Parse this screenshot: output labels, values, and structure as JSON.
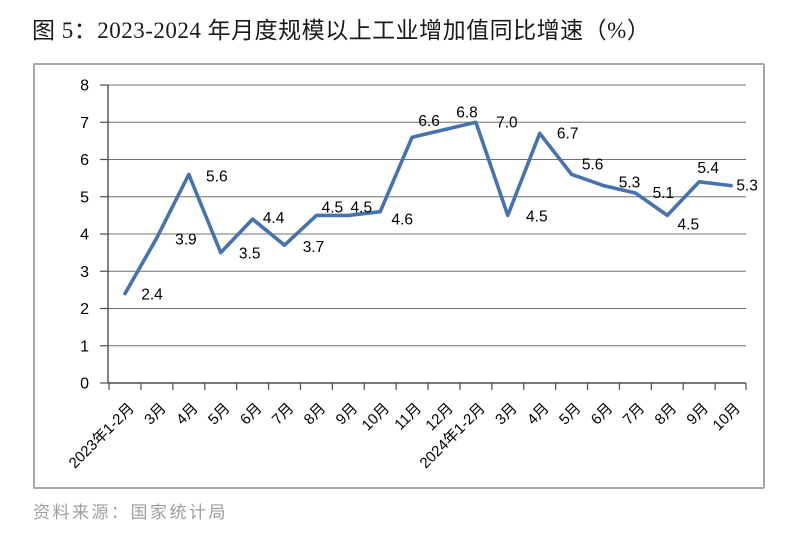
{
  "title": "图 5：2023-2024 年月度规模以上工业增加值同比增速（%）",
  "source_note": "资料来源：国家统计局",
  "chart_data": {
    "type": "line",
    "title": "图 5：2023-2024 年月度规模以上工业增加值同比增速（%）",
    "categories": [
      "2023年1-2月",
      "3月",
      "4月",
      "5月",
      "6月",
      "7月",
      "8月",
      "9月",
      "10月",
      "11月",
      "12月",
      "2024年1-2月",
      "3月",
      "4月",
      "5月",
      "6月",
      "7月",
      "8月",
      "9月",
      "10月"
    ],
    "values": [
      2.4,
      3.9,
      5.6,
      3.5,
      4.4,
      3.7,
      4.5,
      4.5,
      4.6,
      6.6,
      6.8,
      7.0,
      4.5,
      6.7,
      5.6,
      5.3,
      5.1,
      4.5,
      5.4,
      5.3
    ],
    "point_labels": [
      "2.4",
      "3.9",
      "5.6",
      "3.5",
      "4.4",
      "3.7",
      "4.5",
      "4.5",
      "4.6",
      "6.6",
      "6.8",
      "7.0",
      "4.5",
      "6.7",
      "5.6",
      "5.3",
      "5.1",
      "4.5",
      "5.4",
      "5.3"
    ],
    "xlabel": "",
    "ylabel": "",
    "ylim": [
      0,
      8
    ],
    "yticks": [
      0,
      1,
      2,
      3,
      4,
      5,
      6,
      7,
      8
    ],
    "grid": true,
    "legend": "none",
    "x_label_rotation": -45,
    "line_color": "#4673af"
  },
  "colors": {
    "line": "#4673af",
    "gridline": "#6f6f6f",
    "axis": "#4d4d4d",
    "frame_border": "#a6a6a6",
    "title_text": "#1a1a1a",
    "source_text": "#9e9e9e",
    "data_label": "#000000"
  }
}
